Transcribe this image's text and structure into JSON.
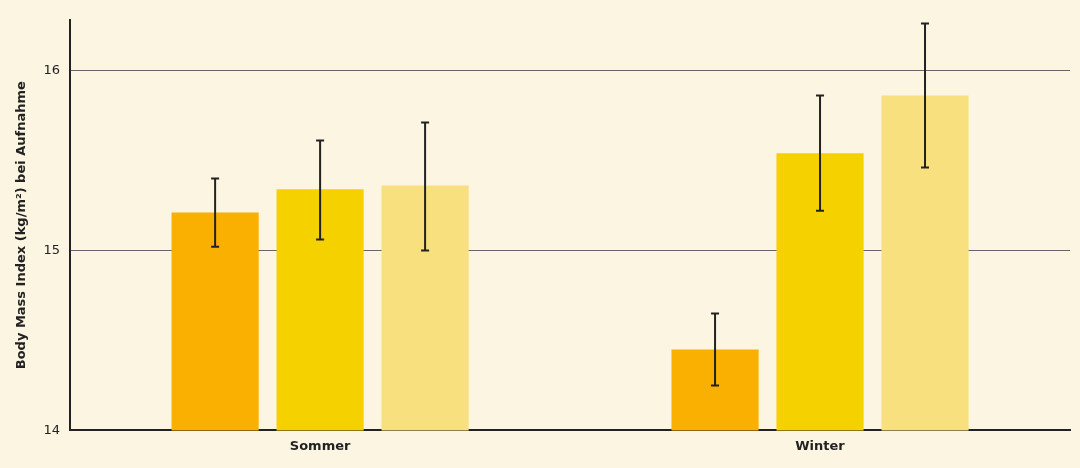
{
  "chart_data": {
    "type": "bar",
    "ylabel": "Body Mass Index (kg/m²) bei Aufnahme",
    "categories": [
      "Sommer",
      "Winter"
    ],
    "series": [
      {
        "color": "#f9b000",
        "values": [
          15.21,
          14.45
        ],
        "errors": [
          [
            15.02,
            15.4
          ],
          [
            14.25,
            14.65
          ]
        ]
      },
      {
        "color": "#f5d100",
        "values": [
          15.34,
          15.54
        ],
        "errors": [
          [
            15.06,
            15.61
          ],
          [
            15.22,
            15.86
          ]
        ]
      },
      {
        "color": "#f9e07e",
        "values": [
          15.36,
          15.86
        ],
        "errors": [
          [
            15.0,
            15.71
          ],
          [
            15.46,
            16.26
          ]
        ]
      }
    ],
    "ylim": [
      14,
      16.28
    ],
    "yticks": [
      14,
      15,
      16
    ],
    "grid": "y",
    "legend": false
  }
}
